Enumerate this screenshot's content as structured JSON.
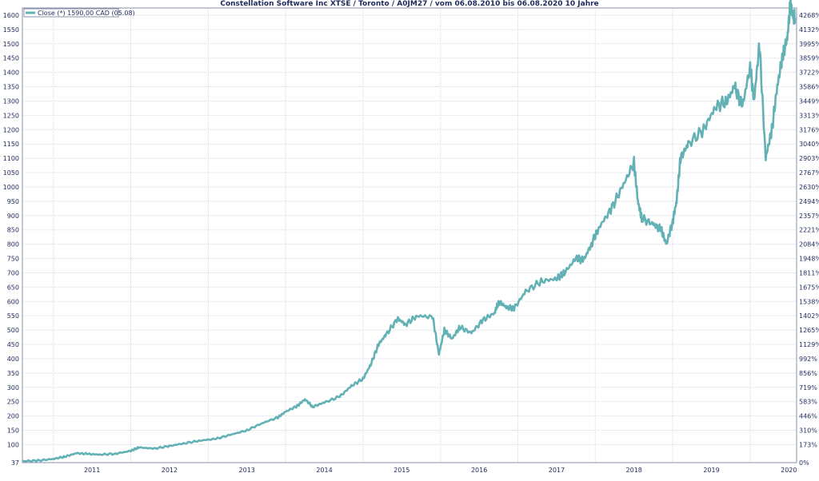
{
  "chart_data": {
    "type": "line",
    "title": "Constellation Software Inc XTSE / Toronto / A0JM27 / vom 06.08.2010 bis 06.08.2020 10 Jahre",
    "legend": {
      "label": "Close (*) 1590,00 CAD (05.08)",
      "placement": "top-left"
    },
    "xlabel": "",
    "ylabel": "",
    "x_ticks": [
      "2011",
      "2012",
      "2013",
      "2014",
      "2015",
      "2016",
      "2017",
      "2018",
      "2019",
      "2020"
    ],
    "x_range": [
      2010.6,
      2020.6
    ],
    "y_left_ticks": [
      "37",
      "100",
      "150",
      "200",
      "250",
      "300",
      "350",
      "400",
      "450",
      "500",
      "550",
      "600",
      "650",
      "700",
      "750",
      "800",
      "850",
      "900",
      "950",
      "1000",
      "1050",
      "1100",
      "1150",
      "1200",
      "1250",
      "1300",
      "1350",
      "1400",
      "1450",
      "1500",
      "1550",
      "1600"
    ],
    "y_right_ticks": [
      "0%",
      "173%",
      "310%",
      "446%",
      "583%",
      "719%",
      "856%",
      "992%",
      "1129%",
      "1265%",
      "1402%",
      "1538%",
      "1675%",
      "1811%",
      "1948%",
      "2084%",
      "2221%",
      "2357%",
      "2494%",
      "2630%",
      "2767%",
      "2903%",
      "3040%",
      "3176%",
      "3313%",
      "3449%",
      "3586%",
      "3722%",
      "3859%",
      "3995%",
      "4132%",
      "4268%"
    ],
    "ylim": [
      37,
      1650
    ],
    "grid": true,
    "line_color": "#62b1b4",
    "series": [
      {
        "name": "Close (*) 1590,00 CAD (05.08)",
        "x": [
          2010.6,
          2010.8,
          2011.0,
          2011.15,
          2011.3,
          2011.45,
          2011.6,
          2011.8,
          2012.0,
          2012.1,
          2012.3,
          2012.5,
          2012.7,
          2012.9,
          2013.1,
          2013.3,
          2013.5,
          2013.7,
          2013.9,
          2014.0,
          2014.15,
          2014.25,
          2014.35,
          2014.5,
          2014.7,
          2014.85,
          2015.0,
          2015.1,
          2015.2,
          2015.3,
          2015.45,
          2015.55,
          2015.7,
          2015.9,
          2015.98,
          2016.05,
          2016.15,
          2016.25,
          2016.4,
          2016.55,
          2016.7,
          2016.75,
          2016.85,
          2016.95,
          2017.1,
          2017.3,
          2017.5,
          2017.6,
          2017.75,
          2017.85,
          2017.95,
          2018.05,
          2018.2,
          2018.35,
          2018.5,
          2018.55,
          2018.6,
          2018.75,
          2018.85,
          2018.92,
          2019.0,
          2019.05,
          2019.1,
          2019.2,
          2019.4,
          2019.55,
          2019.7,
          2019.8,
          2019.9,
          2020.0,
          2020.05,
          2020.12,
          2020.2,
          2020.28,
          2020.35,
          2020.42,
          2020.48,
          2020.52,
          2020.55,
          2020.58
        ],
        "values": [
          42,
          44,
          50,
          58,
          70,
          67,
          65,
          68,
          78,
          90,
          86,
          95,
          105,
          114,
          120,
          135,
          150,
          175,
          195,
          215,
          235,
          258,
          232,
          247,
          268,
          305,
          330,
          380,
          450,
          485,
          540,
          520,
          550,
          545,
          415,
          500,
          470,
          510,
          490,
          535,
          560,
          600,
          580,
          575,
          635,
          670,
          680,
          700,
          750,
          745,
          800,
          860,
          920,
          1000,
          1085,
          950,
          890,
          870,
          850,
          800,
          880,
          950,
          1100,
          1150,
          1200,
          1280,
          1300,
          1350,
          1280,
          1420,
          1300,
          1500,
          1100,
          1200,
          1350,
          1460,
          1520,
          1640,
          1600,
          1590
        ]
      }
    ]
  }
}
